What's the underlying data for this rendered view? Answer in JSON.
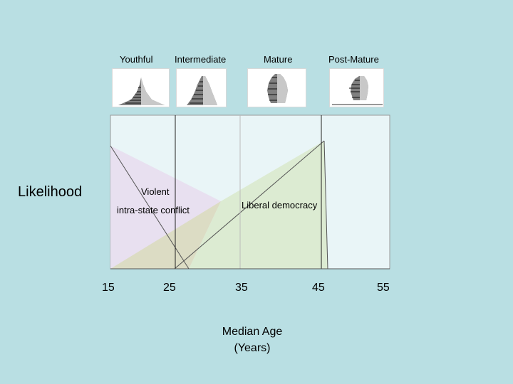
{
  "stages": [
    {
      "label": "Youthful"
    },
    {
      "label": "Intermediate"
    },
    {
      "label": "Mature"
    },
    {
      "label": "Post-Mature"
    }
  ],
  "y_axis": {
    "label": "Likelihood"
  },
  "regions": {
    "conflict_label_line1": "Violent",
    "conflict_label_line2": "intra-state conflict",
    "democracy_label": "Liberal democracy"
  },
  "x_axis": {
    "ticks": [
      "15",
      "25",
      "35",
      "45",
      "55"
    ],
    "title_line1": "Median Age",
    "title_line2": "(Years)"
  },
  "colors": {
    "background": "#b9dfe3",
    "plot_area": "#e9f5f7",
    "conflict_fill": "#e8e0f0",
    "democracy_fill": "#dcebd2",
    "overlap_fill": "#dcdcc4"
  }
}
